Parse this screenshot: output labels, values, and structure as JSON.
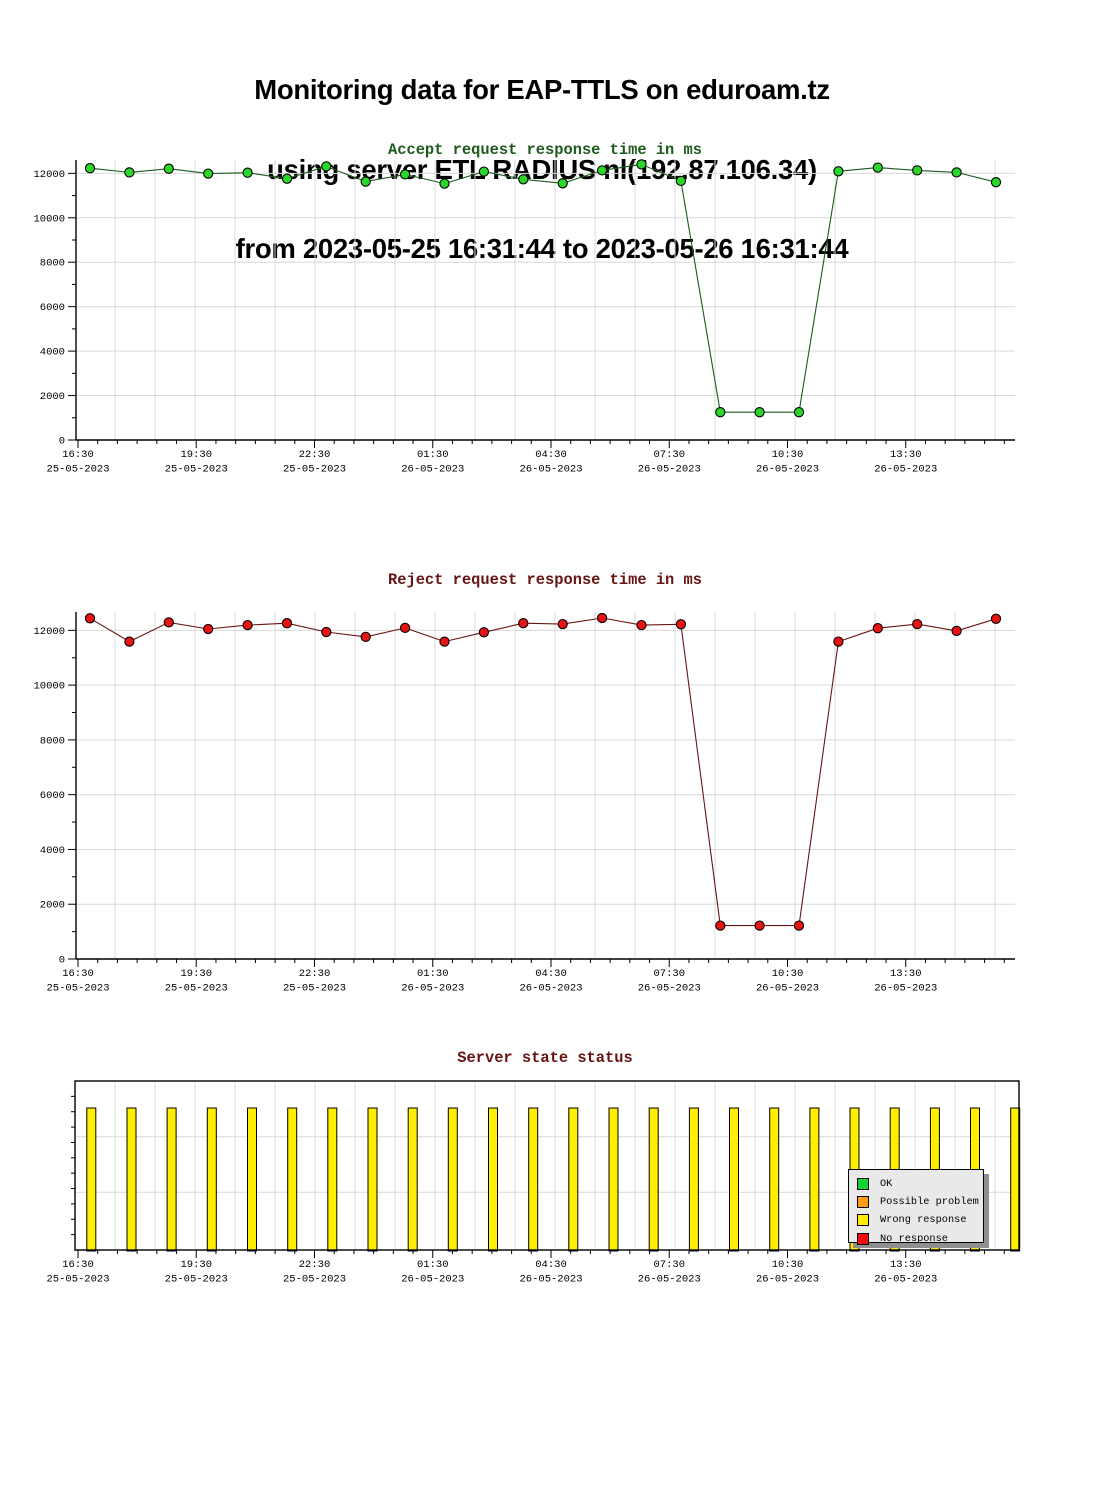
{
  "title": {
    "line1": "Monitoring data for EAP-TTLS on eduroam.tz",
    "line2": "using server ETL RADIUS nl(192.87.106.34)",
    "line3": "from 2023-05-25 16:31:44 to 2023-05-26 16:31:44"
  },
  "x_axis": {
    "tick_labels": [
      {
        "time": "16:30",
        "date": "25-05-2023"
      },
      {
        "time": "19:30",
        "date": "25-05-2023"
      },
      {
        "time": "22:30",
        "date": "25-05-2023"
      },
      {
        "time": "01:30",
        "date": "26-05-2023"
      },
      {
        "time": "04:30",
        "date": "26-05-2023"
      },
      {
        "time": "07:30",
        "date": "26-05-2023"
      },
      {
        "time": "10:30",
        "date": "26-05-2023"
      },
      {
        "time": "13:30",
        "date": "26-05-2023"
      }
    ]
  },
  "chart_data": [
    {
      "type": "line",
      "title": "Accept request response time in ms",
      "title_color": "#1e5a1e",
      "line_color": "#1e5a1e",
      "marker_color": "#2bd62b",
      "xlabel": "",
      "ylabel": "",
      "grid": true,
      "ylim": [
        0,
        12600
      ],
      "y_ticks": [
        0,
        2000,
        4000,
        6000,
        8000,
        10000,
        12000
      ],
      "x_tick_labels": [
        "16:30 25-05-2023",
        "19:30 25-05-2023",
        "22:30 25-05-2023",
        "01:30 26-05-2023",
        "04:30 26-05-2023",
        "07:30 26-05-2023",
        "10:30 26-05-2023",
        "13:30 26-05-2023"
      ],
      "values": [
        12230,
        12040,
        12210,
        11990,
        12030,
        11760,
        12310,
        11630,
        11950,
        11540,
        12080,
        11730,
        11550,
        12130,
        12400,
        11660,
        1250,
        1250,
        1250,
        12090,
        12260,
        12130,
        12040,
        11600
      ]
    },
    {
      "type": "line",
      "title": "Reject request response time in ms",
      "title_color": "#671414",
      "line_color": "#6b1414",
      "marker_color": "#e81414",
      "xlabel": "",
      "ylabel": "",
      "grid": true,
      "ylim": [
        0,
        12670
      ],
      "y_ticks": [
        0,
        2000,
        4000,
        6000,
        8000,
        10000,
        12000
      ],
      "x_tick_labels": [
        "16:30 25-05-2023",
        "19:30 25-05-2023",
        "22:30 25-05-2023",
        "01:30 26-05-2023",
        "04:30 26-05-2023",
        "07:30 26-05-2023",
        "10:30 26-05-2023",
        "13:30 26-05-2023"
      ],
      "values": [
        12440,
        11590,
        12290,
        12050,
        12190,
        12260,
        11940,
        11760,
        12090,
        11590,
        11930,
        12260,
        12230,
        12450,
        12190,
        12220,
        1220,
        1220,
        1220,
        11590,
        12080,
        12230,
        11980,
        12420
      ]
    },
    {
      "type": "bar",
      "title": "Server state status",
      "title_color": "#671414",
      "bar_color": "#ffee00",
      "bar_border_color": "#000000",
      "xlabel": "",
      "ylabel": "",
      "grid": true,
      "legend_position": "inside-right",
      "bar_value_fraction": 0.84,
      "x_tick_labels": [
        "16:30 25-05-2023",
        "19:30 25-05-2023",
        "22:30 25-05-2023",
        "01:30 26-05-2023",
        "04:30 26-05-2023",
        "07:30 26-05-2023",
        "10:30 26-05-2023",
        "13:30 26-05-2023"
      ],
      "states": [
        "wrong_response",
        "wrong_response",
        "wrong_response",
        "wrong_response",
        "wrong_response",
        "wrong_response",
        "wrong_response",
        "wrong_response",
        "wrong_response",
        "wrong_response",
        "wrong_response",
        "wrong_response",
        "wrong_response",
        "wrong_response",
        "wrong_response",
        "wrong_response",
        "wrong_response",
        "wrong_response",
        "wrong_response",
        "wrong_response",
        "wrong_response",
        "wrong_response",
        "wrong_response",
        "wrong_response"
      ]
    }
  ],
  "legend": {
    "items": [
      {
        "key": "ok",
        "label": "OK",
        "color": "#0ed431"
      },
      {
        "key": "possible_problem",
        "label": "Possible problem",
        "color": "#fc9c14"
      },
      {
        "key": "wrong_response",
        "label": "Wrong response",
        "color": "#ffee00"
      },
      {
        "key": "no_response",
        "label": "No response",
        "color": "#f20d0d"
      }
    ]
  },
  "colors": {
    "grid": "#d9d9d9",
    "axis": "#000000",
    "background": "#ffffff"
  }
}
